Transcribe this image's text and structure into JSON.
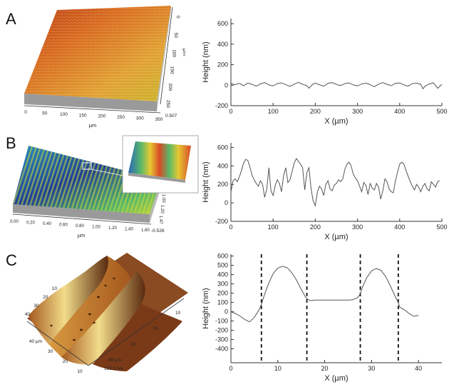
{
  "figure": {
    "panel_letters": [
      "A",
      "B",
      "C"
    ],
    "surfaces": [
      {
        "id": "A",
        "colormap": [
          "#c8b42a",
          "#e0a032",
          "#d86a1e",
          "#b83a14"
        ],
        "x_axis": {
          "ticks": [
            "0",
            "50",
            "100",
            "150",
            "200",
            "250",
            "300",
            "350"
          ],
          "label": "µm"
        },
        "depth_axis": {
          "ticks": [
            "0",
            "50",
            "100",
            "150",
            "200",
            "250"
          ],
          "label": "µm"
        },
        "z_label": "0.507"
      },
      {
        "id": "B",
        "colormap": [
          "#1f3f95",
          "#2a8fb8",
          "#58b86a",
          "#c8d23a"
        ],
        "x_axis": {
          "ticks": [
            "0.00",
            "0.20",
            "0.40",
            "0.60",
            "0.80",
            "1.00",
            "1.20",
            "1.40",
            "1.60"
          ],
          "label": "µm"
        },
        "depth_axis": {
          "ticks": [
            "1.00",
            "1.20",
            "1.47"
          ],
          "label": ""
        },
        "z_label": "-0.526",
        "inset": {
          "colors": [
            "#2a68b8",
            "#58b86a",
            "#e6c832",
            "#d84a28"
          ]
        }
      },
      {
        "id": "C",
        "colormap": [
          "#5a2a10",
          "#a5581e",
          "#d89a40",
          "#f2dc8a"
        ],
        "left_axis_ticks": [
          "40",
          "30",
          "20",
          "10"
        ],
        "bottom_axis_ticks": [
          "40 µm",
          "30",
          "20",
          "10"
        ],
        "right_axis_ticks": [
          "10",
          "20",
          "30",
          "40 µm"
        ],
        "z_label": "133.2 nm"
      }
    ]
  },
  "chart_data": [
    {
      "type": "line",
      "panel": "A",
      "xlabel": "X (µm)",
      "ylabel": "Height (nm)",
      "xlim": [
        0,
        500
      ],
      "ylim": [
        -200,
        650
      ],
      "xticks": [
        "0",
        "100",
        "200",
        "300",
        "400",
        "500"
      ],
      "yticks": [
        "-200",
        "0",
        "200",
        "400",
        "600"
      ],
      "grid": false,
      "series": [
        {
          "x": [
            0,
            10,
            20,
            30,
            40,
            50,
            60,
            70,
            80,
            90,
            100,
            110,
            120,
            130,
            140,
            150,
            160,
            170,
            180,
            185,
            190,
            195,
            200,
            210,
            220,
            230,
            240,
            250,
            260,
            270,
            280,
            290,
            300,
            310,
            320,
            330,
            340,
            350,
            360,
            370,
            380,
            390,
            400,
            410,
            420,
            430,
            440,
            450,
            455,
            460,
            470,
            480,
            490,
            500
          ],
          "y": [
            15,
            5,
            18,
            -5,
            20,
            8,
            -10,
            12,
            25,
            3,
            -8,
            15,
            22,
            5,
            -12,
            10,
            28,
            8,
            -5,
            -30,
            -8,
            12,
            20,
            5,
            -10,
            18,
            25,
            8,
            -5,
            15,
            22,
            3,
            -8,
            12,
            20,
            5,
            -15,
            10,
            25,
            8,
            -5,
            18,
            22,
            3,
            -10,
            15,
            20,
            8,
            -35,
            -10,
            12,
            22,
            -30,
            8
          ]
        }
      ]
    },
    {
      "type": "line",
      "panel": "B",
      "xlabel": "X (µm)",
      "ylabel": "Height (nm)",
      "xlim": [
        0,
        500
      ],
      "ylim": [
        -200,
        650
      ],
      "xticks": [
        "0",
        "100",
        "200",
        "300",
        "400",
        "500"
      ],
      "yticks": [
        "-200",
        "0",
        "200",
        "400",
        "600"
      ],
      "grid": false,
      "series": [
        {
          "x": [
            0,
            5,
            10,
            15,
            20,
            25,
            30,
            35,
            40,
            45,
            50,
            55,
            60,
            65,
            70,
            75,
            80,
            85,
            90,
            95,
            100,
            105,
            110,
            115,
            120,
            125,
            130,
            135,
            140,
            145,
            150,
            155,
            160,
            165,
            170,
            175,
            180,
            185,
            190,
            195,
            200,
            205,
            210,
            215,
            220,
            225,
            230,
            235,
            240,
            245,
            250,
            255,
            260,
            265,
            270,
            275,
            280,
            285,
            290,
            295,
            300,
            305,
            310,
            315,
            320,
            325,
            330,
            335,
            340,
            345,
            350,
            355,
            360,
            365,
            370,
            375,
            380,
            385,
            390,
            395,
            400,
            405,
            410,
            415,
            420,
            425,
            430,
            435,
            440,
            445,
            450,
            455,
            460,
            465,
            470,
            475,
            480,
            485,
            490,
            495
          ],
          "y": [
            120,
            240,
            260,
            230,
            280,
            350,
            430,
            470,
            460,
            390,
            300,
            250,
            210,
            180,
            240,
            200,
            60,
            150,
            380,
            130,
            80,
            190,
            250,
            210,
            120,
            300,
            380,
            220,
            250,
            340,
            430,
            480,
            450,
            420,
            380,
            140,
            330,
            380,
            150,
            20,
            -30,
            120,
            180,
            150,
            80,
            200,
            240,
            150,
            130,
            190,
            210,
            250,
            230,
            260,
            360,
            420,
            440,
            400,
            310,
            270,
            240,
            180,
            120,
            220,
            190,
            90,
            210,
            160,
            140,
            210,
            170,
            40,
            130,
            260,
            230,
            150,
            120,
            110,
            240,
            330,
            420,
            440,
            420,
            350,
            290,
            230,
            180,
            140,
            200,
            170,
            120,
            180,
            210,
            150,
            130,
            230,
            200,
            170,
            230,
            240
          ]
        }
      ]
    },
    {
      "type": "line",
      "panel": "C",
      "xlabel": "X (µm)",
      "ylabel": "Height (nm)",
      "xlim": [
        0,
        45
      ],
      "ylim": [
        -550,
        620
      ],
      "xticks": [
        "0",
        "10",
        "20",
        "30",
        "40"
      ],
      "yticks": [
        "-400",
        "-300",
        "-200",
        "-100",
        "0",
        "100",
        "200",
        "300",
        "400",
        "500",
        "600"
      ],
      "grid": false,
      "vlines_dashed": [
        6.5,
        16.2,
        27.6,
        35.7
      ],
      "series": [
        {
          "x": [
            0,
            1,
            2,
            3,
            4,
            5,
            6,
            6.5,
            7,
            8,
            9,
            10,
            11,
            12,
            13,
            14,
            15,
            16,
            16.5,
            17,
            18,
            19,
            20,
            21,
            22,
            23,
            24,
            25,
            26,
            27,
            27.6,
            28,
            29,
            30,
            31,
            32,
            33,
            34,
            35,
            35.7,
            36,
            37,
            38,
            39,
            40
          ],
          "y": [
            0,
            -20,
            -50,
            -85,
            -110,
            -60,
            20,
            80,
            160,
            300,
            410,
            470,
            490,
            475,
            420,
            340,
            240,
            150,
            130,
            120,
            125,
            125,
            125,
            125,
            125,
            125,
            125,
            125,
            130,
            150,
            190,
            260,
            370,
            440,
            465,
            445,
            380,
            280,
            170,
            100,
            50,
            20,
            -20,
            -50,
            -40
          ]
        }
      ]
    }
  ]
}
